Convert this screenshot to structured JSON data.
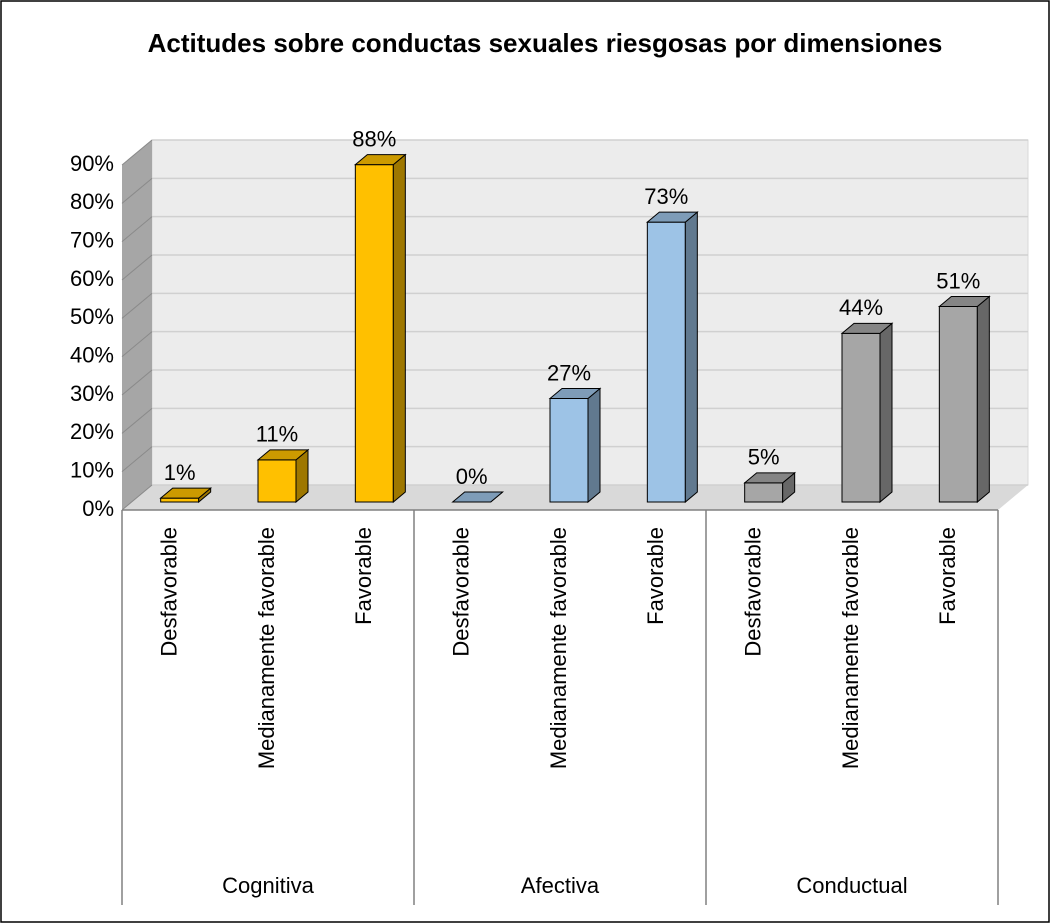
{
  "chart_data": {
    "type": "bar3d",
    "title": "Actitudes sobre conductas sexuales riesgosas por dimensiones",
    "ylim": [
      0,
      90
    ],
    "yticks": [
      {
        "value": 0,
        "label": "0%"
      },
      {
        "value": 10,
        "label": "10%"
      },
      {
        "value": 20,
        "label": "20%"
      },
      {
        "value": 30,
        "label": "30%"
      },
      {
        "value": 40,
        "label": "40%"
      },
      {
        "value": 50,
        "label": "50%"
      },
      {
        "value": 60,
        "label": "60%"
      },
      {
        "value": 70,
        "label": "70%"
      },
      {
        "value": 80,
        "label": "80%"
      },
      {
        "value": 90,
        "label": "90%"
      }
    ],
    "grid": true,
    "groups": [
      {
        "name": "Cognitiva",
        "color": "#FFC000",
        "categories": [
          "Desfavorable",
          "Medianamente favorable",
          "Favorable"
        ],
        "values": [
          1,
          11,
          88
        ],
        "value_labels": [
          "1%",
          "11%",
          "88%"
        ]
      },
      {
        "name": "Afectiva",
        "color": "#9DC3E6",
        "categories": [
          "Desfavorable",
          "Medianamente favorable",
          "Favorable"
        ],
        "values": [
          0,
          27,
          73
        ],
        "value_labels": [
          "0%",
          "27%",
          "73%"
        ]
      },
      {
        "name": "Conductual",
        "color": "#A6A6A6",
        "categories": [
          "Desfavorable",
          "Medianamente favorable",
          "Favorable"
        ],
        "values": [
          5,
          44,
          51
        ],
        "value_labels": [
          "5%",
          "44%",
          "51%"
        ]
      }
    ]
  }
}
